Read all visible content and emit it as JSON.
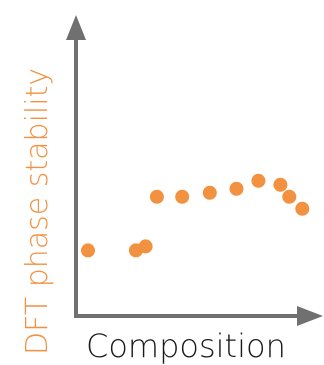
{
  "chart_data": {
    "type": "scatter",
    "xlabel": "Composition",
    "ylabel": "DFT phase stability",
    "x_ticks_shown": false,
    "y_ticks_shown": false,
    "grid": false,
    "axis_color": "#707070",
    "point_color": "#F2913F",
    "ylabel_color": "#F2913F",
    "xlim": [
      0,
      100
    ],
    "ylim": [
      0,
      100
    ],
    "points": [
      {
        "x": 3.4,
        "y": 24.8
      },
      {
        "x": 23.7,
        "y": 24.8
      },
      {
        "x": 27.8,
        "y": 26.8
      },
      {
        "x": 32.6,
        "y": 51.6
      },
      {
        "x": 43.3,
        "y": 51.6
      },
      {
        "x": 55.0,
        "y": 53.6
      },
      {
        "x": 66.3,
        "y": 55.6
      },
      {
        "x": 75.6,
        "y": 59.6
      },
      {
        "x": 84.9,
        "y": 57.6
      },
      {
        "x": 88.7,
        "y": 51.6
      },
      {
        "x": 94.2,
        "y": 45.6
      }
    ]
  }
}
